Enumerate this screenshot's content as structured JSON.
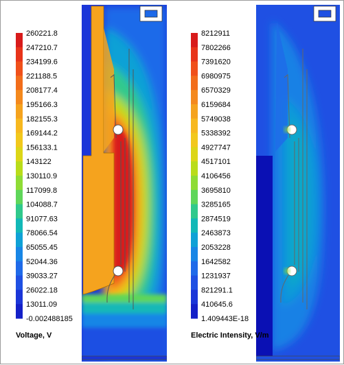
{
  "chart_data": [
    {
      "type": "heatmap",
      "legend_title": "Voltage, V",
      "legend_ticks": [
        "260221.8",
        "247210.7",
        "234199.6",
        "221188.5",
        "208177.4",
        "195166.3",
        "182155.3",
        "169144.2",
        "156133.1",
        "143122",
        "130110.9",
        "117099.8",
        "104088.7",
        "91077.63",
        "78066.54",
        "65055.45",
        "52044.36",
        "39033.27",
        "26022.18",
        "13011.09",
        "-0.002488185"
      ],
      "colors": [
        "#d81b1b",
        "#e8341a",
        "#f0501a",
        "#f26d1b",
        "#f4891d",
        "#f5a31e",
        "#f7b81f",
        "#f2c81c",
        "#dcd617",
        "#b9dc1a",
        "#8fdc35",
        "#5fd65a",
        "#30c98c",
        "#12b8b7",
        "#0fa1d6",
        "#1886e6",
        "#1f6ae9",
        "#1f50e3",
        "#1b36d8",
        "#1420c8",
        "#0a10b4"
      ],
      "value_range": [
        -0.002488185,
        260221.8
      ],
      "field": "voltage"
    },
    {
      "type": "heatmap",
      "legend_title": "Electric Intensity, V/m",
      "legend_ticks": [
        "8212911",
        "7802266",
        "7391620",
        "6980975",
        "6570329",
        "6159684",
        "5749038",
        "5338392",
        "4927747",
        "4517101",
        "4106456",
        "3695810",
        "3285165",
        "2874519",
        "2463873",
        "2053228",
        "1642582",
        "1231937",
        "821291.1",
        "410645.6",
        "1.409443E-18"
      ],
      "colors": [
        "#d81b1b",
        "#e8341a",
        "#f0501a",
        "#f26d1b",
        "#f4891d",
        "#f5a31e",
        "#f7b81f",
        "#f2c81c",
        "#dcd617",
        "#b9dc1a",
        "#8fdc35",
        "#5fd65a",
        "#30c98c",
        "#12b8b7",
        "#0fa1d6",
        "#1886e6",
        "#1f6ae9",
        "#1f50e3",
        "#1b36d8",
        "#1420c8",
        "#0a10b4"
      ],
      "value_range": [
        1.409443e-18,
        8212911
      ],
      "field": "electric-intensity"
    }
  ]
}
